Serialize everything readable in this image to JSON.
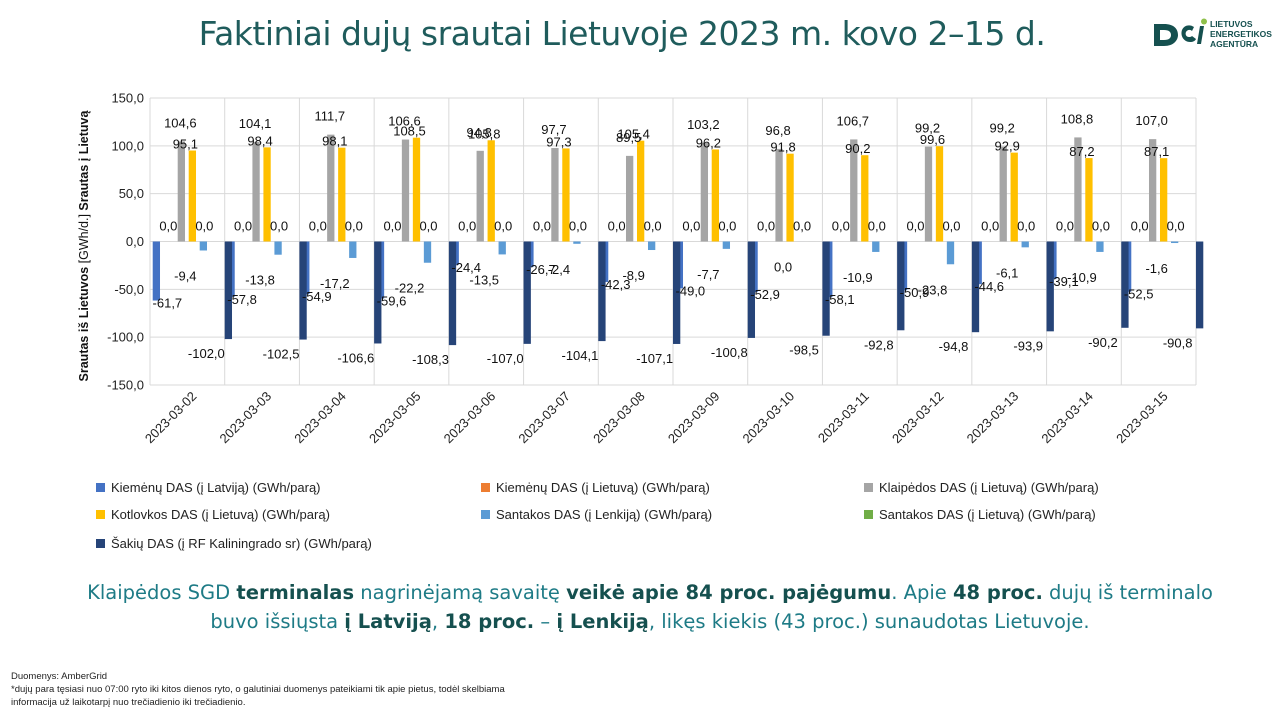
{
  "title": "Faktiniai dujų srautai Lietuvoje 2023 m. kovo 2–15 d.",
  "logo": {
    "lines": [
      "LIETUVOS",
      "ENERGETIKOS",
      "AGENTŪRA"
    ],
    "color": "#15504f"
  },
  "chart_data": {
    "type": "bar",
    "ylabel_bottom": "Srautas iš Lietuvos",
    "ylabel_units": "[GWh/d.]",
    "ylabel_top": "Srautas į Lietuvą",
    "ylim": [
      -150,
      150
    ],
    "yticks": [
      150,
      100,
      50,
      0,
      -50,
      -100,
      -150
    ],
    "ytick_labels": [
      "150,0",
      "100,0",
      "50,0",
      "0,0",
      "-50,0",
      "-100,0",
      "-150,0"
    ],
    "grid": true,
    "legend_position": "bottom",
    "categories": [
      "2023-03-02",
      "2023-03-03",
      "2023-03-04",
      "2023-03-05",
      "2023-03-06",
      "2023-03-07",
      "2023-03-08",
      "2023-03-09",
      "2023-03-10",
      "2023-03-11",
      "2023-03-12",
      "2023-03-13",
      "2023-03-14",
      "2023-03-15"
    ],
    "series": [
      {
        "name": "Kiemėnų DAS (į Latviją) (GWh/parą)",
        "color": "#4472c4",
        "values": [
          -61.7,
          -57.8,
          -54.9,
          -59.6,
          -24.4,
          -26.7,
          -42.3,
          -49.0,
          -52.9,
          -58.1,
          -50.9,
          -44.6,
          -39.1,
          -52.5
        ],
        "labels": [
          "-61,7",
          "-57,8",
          "-54,9",
          "-59,6",
          "-24,4",
          "-26,7",
          "-42,3",
          "-49,0",
          "-52,9",
          "-58,1",
          "-50,9",
          "-44,6",
          "-39,1",
          "-52,5"
        ]
      },
      {
        "name": "Kiemėnų DAS (į Lietuvą) (GWh/parą)",
        "color": "#ed7d31",
        "values": [
          0,
          0,
          0,
          0,
          0,
          0,
          0,
          0,
          0,
          0,
          0,
          0,
          0,
          0
        ],
        "labels": [
          "0,0",
          "0,0",
          "0,0",
          "0,0",
          "0,0",
          "0,0",
          "0,0",
          "0,0",
          "0,0",
          "0,0",
          "0,0",
          "0,0",
          "0,0",
          "0,0"
        ]
      },
      {
        "name": "Klaipėdos DAS (į Lietuvą) (GWh/parą)",
        "color": "#a5a5a5",
        "values": [
          104.6,
          104.1,
          111.7,
          106.6,
          94.8,
          97.7,
          89.5,
          103.2,
          96.8,
          106.7,
          99.2,
          99.2,
          108.8,
          107.0
        ],
        "labels": [
          "104,6",
          "104,1",
          "111,7",
          "106,6",
          "94,8",
          "97,7",
          "89,5",
          "103,2",
          "96,8",
          "106,7",
          "99,2",
          "99,2",
          "108,8",
          "107,0"
        ]
      },
      {
        "name": "Kotlovkos DAS (į Lietuvą) (GWh/parą)",
        "color": "#ffc000",
        "values": [
          95.1,
          98.4,
          98.1,
          108.5,
          105.8,
          97.3,
          105.4,
          96.2,
          91.8,
          90.2,
          99.6,
          92.9,
          87.2,
          87.1
        ],
        "labels": [
          "95,1",
          "98,4",
          "98,1",
          "108,5",
          "105,8",
          "97,3",
          "105,4",
          "96,2",
          "91,8",
          "90,2",
          "99,6",
          "92,9",
          "87,2",
          "87,1"
        ]
      },
      {
        "name": "Santakos DAS (į Lenkiją) (GWh/parą)",
        "color": "#5b9bd5",
        "values": [
          -9.4,
          -13.8,
          -17.2,
          -22.2,
          -13.5,
          -2.4,
          -8.9,
          -7.7,
          0,
          -10.9,
          -23.8,
          -6.1,
          -10.9,
          -1.6
        ],
        "labels": [
          "-9,4",
          "-13,8",
          "-17,2",
          "-22,2",
          "-13,5",
          "-2,4",
          "-8,9",
          "-7,7",
          "0,0",
          "-10,9",
          "-23,8",
          "-6,1",
          "-10,9",
          "-1,6"
        ]
      },
      {
        "name": "Santakos DAS (į Lietuvą) (GWh/parą)",
        "color": "#70ad47",
        "values": [
          0,
          0,
          0,
          0,
          0,
          0,
          0,
          0,
          0,
          0,
          0,
          0,
          0,
          0
        ],
        "labels": [
          "0,0",
          "0,0",
          "0,0",
          "0,0",
          "0,0",
          "0,0",
          "0,0",
          "0,0",
          "0,0",
          "0,0",
          "0,0",
          "0,0",
          "0,0",
          "0,0"
        ]
      },
      {
        "name": "Šakių DAS (į RF Kaliningrado sr) (GWh/parą)",
        "color": "#264478",
        "values": [
          -102.0,
          -102.5,
          -106.6,
          -108.3,
          -107.0,
          -104.1,
          -107.1,
          -100.8,
          -98.5,
          -92.8,
          -94.8,
          -93.9,
          -90.2,
          -90.8
        ],
        "labels": [
          "-102,0",
          "-102,5",
          "-106,6",
          "-108,3",
          "-107,0",
          "-104,1",
          "-107,1",
          "-100,8",
          "-98,5",
          "-92,8",
          "-94,8",
          "-93,9",
          "-90,2",
          "-90,8"
        ]
      }
    ]
  },
  "summary": {
    "p1": "Klaipėdos SGD ",
    "b1": "terminalas",
    "p2": " nagrinėjamą savaitę ",
    "b2": "veikė apie 84 proc. pajėgumu",
    "p3": ". Apie ",
    "b3": "48 proc.",
    "p4": " dujų iš terminalo buvo išsiųsta ",
    "b4": "į Latviją",
    "p5": ", ",
    "b5": "18 proc.",
    "p6": " – ",
    "b6": "į Lenkiją",
    "p7": ", likęs kiekis (43 proc.) sunaudotas Lietuvoje."
  },
  "footnote": {
    "line1": "Duomenys: AmberGrid",
    "line2": "*dujų para tęsiasi nuo 07:00 ryto iki kitos dienos ryto, o galutiniai duomenys pateikiami tik apie pietus, todėl skelbiama",
    "line3": "informacija už laikotarpį nuo trečiadienio iki trečiadienio."
  }
}
